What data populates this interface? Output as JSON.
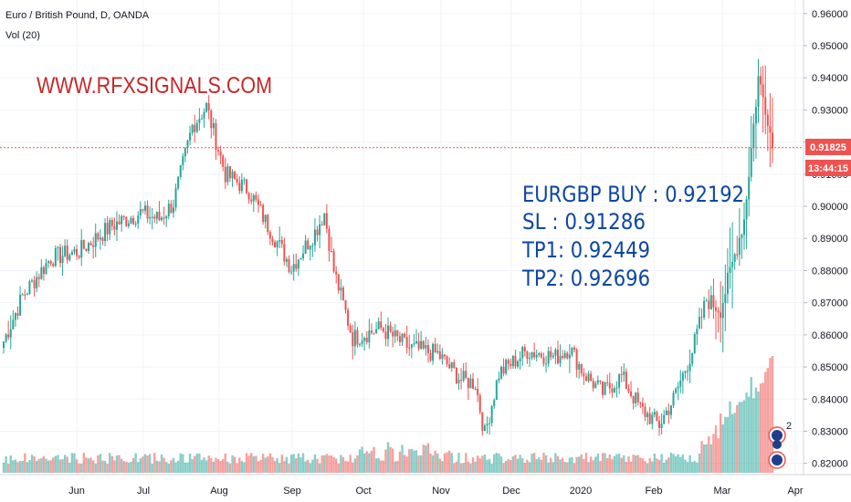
{
  "legend": {
    "symbol": "Euro / British Pound, D, OANDA",
    "indicator": "Vol (20)"
  },
  "watermark": "WWW.RFXSIGNALS.COM",
  "signal": {
    "line1": "EURGBP BUY : 0.92192",
    "line2": "SL : 0.91286",
    "line3": "TP1: 0.92449",
    "line4": "TP2: 0.92696"
  },
  "price_tag": "0.91825",
  "countdown_tag": "13:44:15",
  "colors": {
    "up": "#26a69a",
    "down": "#ef5350",
    "vol_up": "#26a69a",
    "vol_down": "#ef5350",
    "price_line": "#ef5350",
    "watermark": "#c62828",
    "signal": "#0d47a1"
  },
  "chart_data": {
    "type": "candlestick",
    "title": "Euro / British Pound, D, OANDA",
    "y_axis_ticks": [
      "0.96000",
      "0.95000",
      "0.94000",
      "0.93000",
      "0.92000",
      "0.91000",
      "0.90000",
      "0.89000",
      "0.88000",
      "0.87000",
      "0.86000",
      "0.85000",
      "0.84000",
      "0.83000",
      "0.82000"
    ],
    "y_range": [
      0.8165,
      0.9642
    ],
    "x_axis_ticks": [
      "Jun",
      "Jul",
      "Aug",
      "Sep",
      "Oct",
      "Nov",
      "Dec",
      "2020",
      "Feb",
      "Mar",
      "Apr"
    ],
    "current_price": 0.91825,
    "volume_indicator": "Vol (20)",
    "close_path_anchors": [
      [
        0,
        0.858
      ],
      [
        8,
        0.872
      ],
      [
        20,
        0.884
      ],
      [
        32,
        0.886
      ],
      [
        46,
        0.894
      ],
      [
        58,
        0.898
      ],
      [
        66,
        0.896
      ],
      [
        72,
        0.901
      ],
      [
        80,
        0.925
      ],
      [
        86,
        0.931
      ],
      [
        94,
        0.91
      ],
      [
        104,
        0.905
      ],
      [
        112,
        0.894
      ],
      [
        122,
        0.881
      ],
      [
        132,
        0.892
      ],
      [
        136,
        0.898
      ],
      [
        140,
        0.88
      ],
      [
        148,
        0.859
      ],
      [
        160,
        0.862
      ],
      [
        172,
        0.856
      ],
      [
        184,
        0.854
      ],
      [
        194,
        0.846
      ],
      [
        200,
        0.845
      ],
      [
        204,
        0.829
      ],
      [
        210,
        0.848
      ],
      [
        222,
        0.855
      ],
      [
        234,
        0.853
      ],
      [
        240,
        0.856
      ],
      [
        246,
        0.848
      ],
      [
        254,
        0.842
      ],
      [
        262,
        0.847
      ],
      [
        270,
        0.837
      ],
      [
        278,
        0.832
      ],
      [
        284,
        0.84
      ],
      [
        292,
        0.855
      ],
      [
        298,
        0.871
      ],
      [
        304,
        0.868
      ],
      [
        314,
        0.896
      ],
      [
        320,
        0.94
      ],
      [
        324,
        0.928
      ],
      [
        326,
        0.918
      ]
    ]
  }
}
